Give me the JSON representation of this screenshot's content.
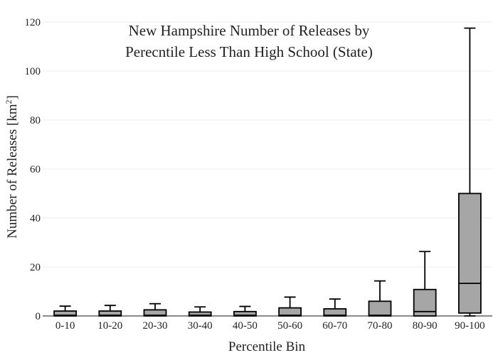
{
  "chart_data": {
    "type": "box",
    "title_lines": [
      "New Hampshire Number of Releases by",
      "Perecntile Less Than High School (State)"
    ],
    "xlabel": "Percentile Bin",
    "ylabel": "Number of Releases  [km",
    "ylabel_superscript": "2",
    "ylabel_suffix": "]",
    "ylim": [
      0,
      120
    ],
    "yticks": [
      0,
      20,
      40,
      60,
      80,
      100,
      120
    ],
    "grid": true,
    "categories": [
      "0-10",
      "10-20",
      "20-30",
      "30-40",
      "40-50",
      "50-60",
      "60-70",
      "70-80",
      "80-90",
      "90-100"
    ],
    "boxes": [
      {
        "q1": 0,
        "median": 0.3,
        "q3": 2.0,
        "whisker_low": 0,
        "whisker_high": 4.0
      },
      {
        "q1": 0,
        "median": 0.3,
        "q3": 2.0,
        "whisker_low": 0,
        "whisker_high": 4.3
      },
      {
        "q1": 0,
        "median": 0.3,
        "q3": 2.5,
        "whisker_low": 0,
        "whisker_high": 5.0
      },
      {
        "q1": 0,
        "median": 0.3,
        "q3": 1.6,
        "whisker_low": 0,
        "whisker_high": 3.7
      },
      {
        "q1": 0,
        "median": 0.3,
        "q3": 1.8,
        "whisker_low": 0,
        "whisker_high": 3.9
      },
      {
        "q1": 0,
        "median": 0.3,
        "q3": 3.3,
        "whisker_low": 0,
        "whisker_high": 7.7
      },
      {
        "q1": 0,
        "median": 0.3,
        "q3": 2.9,
        "whisker_low": 0,
        "whisker_high": 6.9
      },
      {
        "q1": 0,
        "median": 0.3,
        "q3": 6.0,
        "whisker_low": 0,
        "whisker_high": 14.3
      },
      {
        "q1": 0,
        "median": 1.8,
        "q3": 10.8,
        "whisker_low": 0,
        "whisker_high": 26.3
      },
      {
        "q1": 1.2,
        "median": 13.3,
        "q3": 50.0,
        "whisker_low": 0,
        "whisker_high": 117.5
      }
    ],
    "colors": {
      "box_fill": "#a6a6a6",
      "box_stroke": "#000000",
      "grid": "#ececec"
    }
  }
}
